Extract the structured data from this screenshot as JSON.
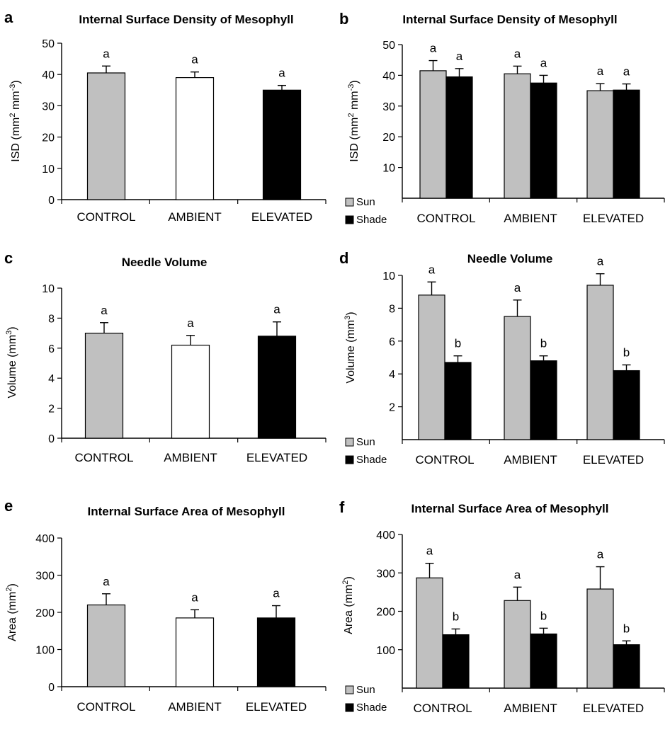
{
  "colors": {
    "control": "#c0c0c0",
    "ambient": "#ffffff",
    "elevated": "#000000",
    "sun": "#c0c0c0",
    "shade": "#000000",
    "axis": "#000000"
  },
  "chart_data": [
    {
      "id": "a",
      "panel_letter": "a",
      "type": "bar",
      "title": "Internal Surface Density of Mesophyll",
      "ylabel": "ISD (mm² mm⁻³)",
      "ylim": [
        0,
        50
      ],
      "yticks": [
        0,
        10,
        20,
        30,
        40,
        50
      ],
      "categories": [
        "CONTROL",
        "AMBIENT",
        "ELEVATED"
      ],
      "series": [
        {
          "name": "",
          "colors": [
            "control",
            "ambient",
            "elevated"
          ],
          "values": [
            40.5,
            39,
            35
          ],
          "errors": [
            2.2,
            1.8,
            1.5
          ],
          "labels": [
            "a",
            "a",
            "a"
          ]
        }
      ]
    },
    {
      "id": "b",
      "panel_letter": "b",
      "type": "bar",
      "title": "Internal Surface Density of Mesophyll",
      "ylabel": "ISD (mm² mm⁻³)",
      "ylim": [
        0,
        50
      ],
      "yticks": [
        10,
        20,
        30,
        40,
        50
      ],
      "categories": [
        "CONTROL",
        "AMBIENT",
        "ELEVATED"
      ],
      "legend": [
        "Sun",
        "Shade"
      ],
      "series": [
        {
          "name": "Sun",
          "color": "sun",
          "values": [
            41.5,
            40.5,
            35
          ],
          "errors": [
            3.3,
            2.5,
            2.3
          ],
          "labels": [
            "a",
            "a",
            "a"
          ]
        },
        {
          "name": "Shade",
          "color": "shade",
          "values": [
            39.5,
            37.5,
            35.2
          ],
          "errors": [
            2.7,
            2.5,
            2.0
          ],
          "labels": [
            "a",
            "a",
            "a"
          ]
        }
      ]
    },
    {
      "id": "c",
      "panel_letter": "c",
      "type": "bar",
      "title": "Needle Volume",
      "ylabel": "Volume (mm³)",
      "ylim": [
        0,
        10
      ],
      "yticks": [
        0,
        2,
        4,
        6,
        8,
        10
      ],
      "categories": [
        "CONTROL",
        "AMBIENT",
        "ELEVATED"
      ],
      "series": [
        {
          "name": "",
          "colors": [
            "control",
            "ambient",
            "elevated"
          ],
          "values": [
            7.0,
            6.2,
            6.8
          ],
          "errors": [
            0.7,
            0.65,
            0.95
          ],
          "labels": [
            "a",
            "a",
            "a"
          ]
        }
      ]
    },
    {
      "id": "d",
      "panel_letter": "d",
      "type": "bar",
      "title": "Needle Volume",
      "ylabel": "Volume (mm³)",
      "ylim": [
        0,
        10.5
      ],
      "yticks": [
        2,
        4,
        6,
        8,
        10
      ],
      "categories": [
        "CONTROL",
        "AMBIENT",
        "ELEVATED"
      ],
      "legend": [
        "Sun",
        "Shade"
      ],
      "series": [
        {
          "name": "Sun",
          "color": "sun",
          "values": [
            8.8,
            7.5,
            9.4
          ],
          "errors": [
            0.8,
            1.0,
            0.7
          ],
          "labels": [
            "a",
            "a",
            "a"
          ]
        },
        {
          "name": "Shade",
          "color": "shade",
          "values": [
            4.7,
            4.8,
            4.2
          ],
          "errors": [
            0.4,
            0.3,
            0.35
          ],
          "labels": [
            "b",
            "b",
            "b"
          ]
        }
      ]
    },
    {
      "id": "e",
      "panel_letter": "e",
      "type": "bar",
      "title": "Internal Surface Area of Mesophyll",
      "ylabel": "Area (mm²)",
      "ylim": [
        0,
        400
      ],
      "yticks": [
        0,
        100,
        200,
        300,
        400
      ],
      "categories": [
        "CONTROL",
        "AMBIENT",
        "ELEVATED"
      ],
      "series": [
        {
          "name": "",
          "colors": [
            "control",
            "ambient",
            "elevated"
          ],
          "values": [
            220,
            185,
            185
          ],
          "errors": [
            30,
            22,
            33
          ],
          "labels": [
            "a",
            "a",
            "a"
          ]
        }
      ]
    },
    {
      "id": "f",
      "panel_letter": "f",
      "type": "bar",
      "title": "Internal Surface Area of Mesophyll",
      "ylabel": "Area (mm²)",
      "ylim": [
        0,
        400
      ],
      "yticks": [
        100,
        200,
        300,
        400
      ],
      "categories": [
        "CONTROL",
        "AMBIENT",
        "ELEVATED"
      ],
      "legend": [
        "Sun",
        "Shade"
      ],
      "series": [
        {
          "name": "Sun",
          "color": "sun",
          "values": [
            287,
            228,
            258
          ],
          "errors": [
            38,
            35,
            58
          ],
          "labels": [
            "a",
            "a",
            "a"
          ]
        },
        {
          "name": "Shade",
          "color": "shade",
          "values": [
            139,
            141,
            113
          ],
          "errors": [
            15,
            15,
            10
          ],
          "labels": [
            "b",
            "b",
            "b"
          ]
        }
      ]
    }
  ]
}
